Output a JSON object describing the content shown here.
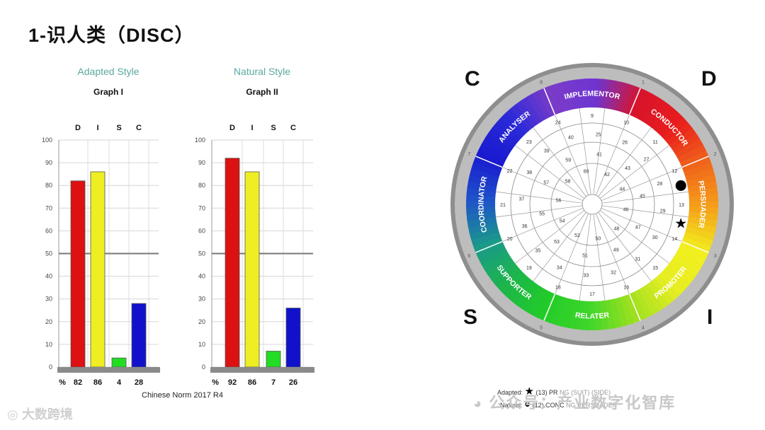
{
  "page": {
    "title": "1-识人类（DISC）"
  },
  "graphs": [
    {
      "subtitle": "Adapted Style",
      "name": "Graph I",
      "letters": [
        "D",
        "I",
        "S",
        "C"
      ],
      "values": [
        82,
        86,
        4,
        28
      ],
      "percent_label": "%"
    },
    {
      "subtitle": "Natural Style",
      "name": "Graph II",
      "letters": [
        "D",
        "I",
        "S",
        "C"
      ],
      "values": [
        92,
        86,
        7,
        26
      ],
      "percent_label": "%"
    }
  ],
  "chart_data": [
    {
      "type": "bar",
      "title": "Adapted Style — Graph I",
      "categories": [
        "D",
        "I",
        "S",
        "C"
      ],
      "values": [
        82,
        86,
        4,
        28
      ],
      "ylim": [
        0,
        100
      ],
      "yticks": [
        0,
        10,
        20,
        30,
        40,
        50,
        60,
        70,
        80,
        90,
        100
      ],
      "reference_line": 50,
      "colors": [
        "#dd1111",
        "#eeee22",
        "#22dd22",
        "#1111cc"
      ]
    },
    {
      "type": "bar",
      "title": "Natural Style — Graph II",
      "categories": [
        "D",
        "I",
        "S",
        "C"
      ],
      "values": [
        92,
        86,
        7,
        26
      ],
      "ylim": [
        0,
        100
      ],
      "yticks": [
        0,
        10,
        20,
        30,
        40,
        50,
        60,
        70,
        80,
        90,
        100
      ],
      "reference_line": 50,
      "colors": [
        "#dd1111",
        "#eeee22",
        "#22dd22",
        "#1111cc"
      ]
    }
  ],
  "norm_label": "Chinese Norm 2017 R4",
  "wheel": {
    "corners": {
      "c": "C",
      "d": "D",
      "s": "S",
      "i": "I"
    },
    "segments": [
      "IMPLEMENTOR",
      "CONDUCTOR",
      "PERSUADER",
      "PROMOTER",
      "RELATER",
      "SUPPORTER",
      "COORDINATOR",
      "ANALYSER"
    ],
    "outer_numbers": [
      "1",
      "2",
      "3",
      "4",
      "5",
      "6",
      "7",
      "8"
    ],
    "ring_numbers": [
      "9",
      "10",
      "11",
      "12",
      "13",
      "14",
      "15",
      "16",
      "17",
      "18",
      "19",
      "20",
      "21",
      "22",
      "23",
      "24",
      "25",
      "26",
      "27",
      "28",
      "29",
      "30",
      "31",
      "32",
      "33",
      "34",
      "35",
      "36",
      "37",
      "38",
      "39",
      "40",
      "41",
      "42",
      "43",
      "44",
      "45",
      "46",
      "47",
      "48",
      "49",
      "50",
      "51",
      "52",
      "53",
      "54",
      "55",
      "56",
      "57",
      "58",
      "59",
      "60"
    ]
  },
  "legend": {
    "adapted": "Adapted:",
    "adapted_text": "(13) PR",
    "adapted_tail": "NG (SUIT) (SIDE)",
    "natural": "Natural:",
    "natural_text": "(12) CONC",
    "natural_tail": "NG PERSUADER"
  },
  "colors": {
    "red": "#e01515",
    "yellow": "#f2ef1e",
    "green": "#22d42a",
    "blue": "#1616c8"
  },
  "watermarks": {
    "right": "公众号：产业数字化智库",
    "left": "大数跨境"
  },
  "icons": [
    "star-icon",
    "dot-icon",
    "wechat-icon"
  ]
}
